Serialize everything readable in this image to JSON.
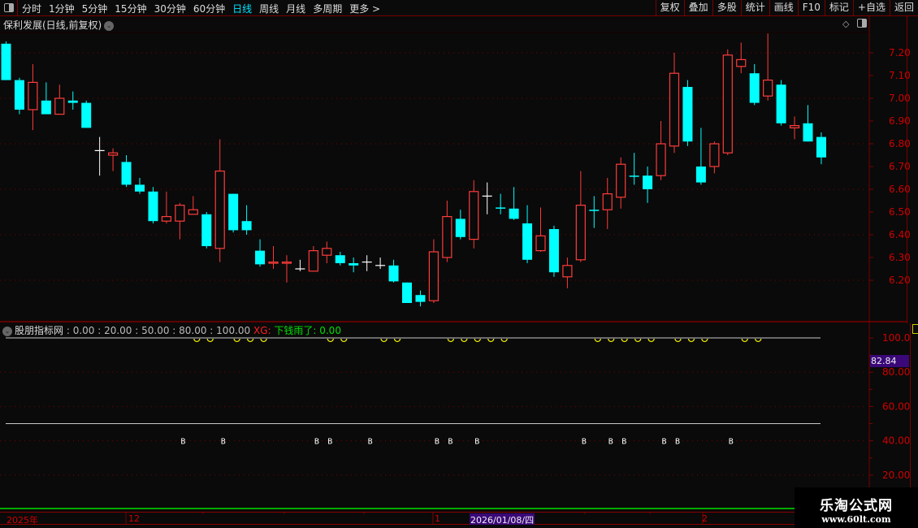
{
  "toolbar": {
    "periods": [
      "分时",
      "1分钟",
      "5分钟",
      "15分钟",
      "30分钟",
      "60分钟",
      "日线",
      "周线",
      "月线",
      "多周期",
      "更多 >"
    ],
    "active_period": "日线",
    "buttons": [
      "复权",
      "叠加",
      "多股",
      "统计",
      "画线",
      "F10",
      "标记",
      "+自选",
      "返回"
    ]
  },
  "title": "保利发展(日线,前复权)",
  "colors": {
    "up": "#ff3b3b",
    "down": "#00ffff",
    "doji": "#ffffff",
    "axis": "#d00000",
    "grid": "#7a0000",
    "accent": "#00e5ff",
    "marker": "#e8e800",
    "highlight": "#3a0878"
  },
  "price_axis": {
    "labels": [
      "7.20",
      "7.10",
      "7.00",
      "6.90",
      "6.80",
      "6.70",
      "6.60",
      "6.50",
      "6.40",
      "6.30",
      "6.20"
    ]
  },
  "chart_data": [
    {
      "type": "candlestick",
      "ylim": [
        6.06,
        7.3
      ],
      "candles": [
        [
          7.24,
          7.25,
          7.08,
          7.08
        ],
        [
          7.08,
          7.09,
          6.93,
          6.95
        ],
        [
          6.95,
          7.15,
          6.86,
          7.07
        ],
        [
          6.99,
          7.07,
          6.93,
          6.93
        ],
        [
          6.93,
          7.06,
          6.93,
          7.0
        ],
        [
          6.99,
          7.03,
          6.95,
          6.98
        ],
        [
          6.98,
          6.99,
          6.87,
          6.87
        ],
        [
          6.77,
          6.83,
          6.66,
          6.77
        ],
        [
          6.75,
          6.78,
          6.68,
          6.76
        ],
        [
          6.72,
          6.75,
          6.61,
          6.62
        ],
        [
          6.62,
          6.65,
          6.58,
          6.59
        ],
        [
          6.59,
          6.61,
          6.45,
          6.46
        ],
        [
          6.46,
          6.59,
          6.45,
          6.48
        ],
        [
          6.46,
          6.54,
          6.38,
          6.53
        ],
        [
          6.49,
          6.57,
          6.49,
          6.51
        ],
        [
          6.49,
          6.5,
          6.34,
          6.35
        ],
        [
          6.34,
          6.82,
          6.28,
          6.68
        ],
        [
          6.58,
          6.58,
          6.41,
          6.42
        ],
        [
          6.46,
          6.53,
          6.4,
          6.42
        ],
        [
          6.33,
          6.38,
          6.26,
          6.27
        ],
        [
          6.275,
          6.35,
          6.25,
          6.28
        ],
        [
          6.275,
          6.31,
          6.19,
          6.28
        ],
        [
          6.25,
          6.29,
          6.24,
          6.25
        ],
        [
          6.24,
          6.35,
          6.24,
          6.33
        ],
        [
          6.31,
          6.37,
          6.275,
          6.34
        ],
        [
          6.31,
          6.325,
          6.265,
          6.275
        ],
        [
          6.275,
          6.3,
          6.235,
          6.265
        ],
        [
          6.28,
          6.31,
          6.24,
          6.28
        ],
        [
          6.265,
          6.3,
          6.25,
          6.265
        ],
        [
          6.265,
          6.29,
          6.19,
          6.195
        ],
        [
          6.19,
          6.19,
          6.1,
          6.1
        ],
        [
          6.135,
          6.155,
          6.085,
          6.105
        ],
        [
          6.11,
          6.38,
          6.1,
          6.325
        ],
        [
          6.3,
          6.55,
          6.28,
          6.48
        ],
        [
          6.47,
          6.51,
          6.38,
          6.39
        ],
        [
          6.38,
          6.64,
          6.34,
          6.59
        ],
        [
          6.57,
          6.63,
          6.49,
          6.57
        ],
        [
          6.52,
          6.58,
          6.49,
          6.515
        ],
        [
          6.515,
          6.61,
          6.465,
          6.47
        ],
        [
          6.45,
          6.53,
          6.275,
          6.29
        ],
        [
          6.33,
          6.52,
          6.325,
          6.395
        ],
        [
          6.425,
          6.44,
          6.215,
          6.235
        ],
        [
          6.215,
          6.3,
          6.165,
          6.265
        ],
        [
          6.29,
          6.68,
          6.28,
          6.53
        ],
        [
          6.51,
          6.57,
          6.43,
          6.505
        ],
        [
          6.51,
          6.65,
          6.425,
          6.58
        ],
        [
          6.565,
          6.74,
          6.515,
          6.71
        ],
        [
          6.66,
          6.76,
          6.62,
          6.655
        ],
        [
          6.66,
          6.7,
          6.54,
          6.6
        ],
        [
          6.66,
          6.9,
          6.64,
          6.8
        ],
        [
          6.79,
          7.2,
          6.76,
          7.11
        ],
        [
          7.05,
          7.08,
          6.79,
          6.81
        ],
        [
          6.7,
          6.87,
          6.62,
          6.63
        ],
        [
          6.7,
          6.81,
          6.67,
          6.8
        ],
        [
          6.76,
          7.215,
          6.75,
          7.19
        ],
        [
          7.14,
          7.245,
          7.11,
          7.17
        ],
        [
          7.11,
          7.15,
          6.97,
          6.98
        ],
        [
          7.01,
          7.285,
          6.99,
          7.08
        ],
        [
          7.06,
          7.08,
          6.88,
          6.89
        ],
        [
          6.87,
          6.92,
          6.82,
          6.88
        ],
        [
          6.89,
          6.97,
          6.81,
          6.81
        ],
        [
          6.83,
          6.85,
          6.71,
          6.74
        ]
      ]
    },
    {
      "type": "indicator",
      "ylim": [
        0,
        105
      ],
      "levels": [
        100,
        50
      ],
      "grid": [
        80,
        60,
        40,
        20
      ],
      "top_marker_indices": [
        14,
        15,
        17,
        18,
        19,
        24,
        25,
        28,
        29,
        33,
        34,
        35,
        36,
        37,
        44,
        45,
        46,
        47,
        48,
        50,
        51,
        52,
        55,
        56
      ],
      "b_marker_indices": [
        13,
        16,
        23,
        24,
        27,
        32,
        33,
        35,
        43,
        45,
        46,
        49,
        50,
        54
      ],
      "b_label": "B",
      "axis_labels": [
        "100.0",
        "80.00",
        "60.00",
        "40.00",
        "20.00"
      ]
    }
  ],
  "indicator": {
    "name": "股朋指标网",
    "params": ": 0.00 : 20.00 : 50.00 : 80.00 : 100.00",
    "xg_label": "XG:",
    "signal_text": "下钱雨了: 0.00",
    "current_value": "82.84"
  },
  "xaxis": {
    "year": "2025年",
    "m12": "12",
    "m1": "1",
    "m2": "2",
    "cursor_date": "2026/01/08/四"
  },
  "watermark": {
    "name": "乐淘公式网",
    "url": "www.60lt.com"
  }
}
